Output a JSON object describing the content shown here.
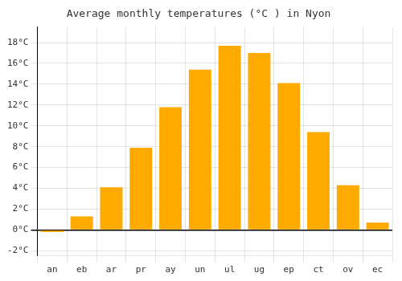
{
  "chart_data": {
    "type": "bar",
    "title": "Average monthly temperatures (°C ) in Nyon",
    "categories": [
      "an",
      "eb",
      "ar",
      "pr",
      "ay",
      "un",
      "ul",
      "ug",
      "ep",
      "ct",
      "ov",
      "ec"
    ],
    "values": [
      -0.2,
      1.3,
      4.1,
      7.9,
      11.8,
      15.4,
      17.7,
      17.0,
      14.1,
      9.4,
      4.3,
      0.7
    ],
    "color": "#FFAA00",
    "ylim": [
      -2.5,
      19.5
    ],
    "yticks": [
      {
        "value": -2,
        "label": "-2°C"
      },
      {
        "value": 0,
        "label": "0°C"
      },
      {
        "value": 2,
        "label": "2°C"
      },
      {
        "value": 4,
        "label": "4°C"
      },
      {
        "value": 6,
        "label": "6°C"
      },
      {
        "value": 8,
        "label": "8°C"
      },
      {
        "value": 10,
        "label": "10°C"
      },
      {
        "value": 12,
        "label": "12°C"
      },
      {
        "value": 14,
        "label": "14°C"
      },
      {
        "value": 16,
        "label": "16°C"
      },
      {
        "value": 18,
        "label": "18°C"
      }
    ],
    "grid": true
  }
}
